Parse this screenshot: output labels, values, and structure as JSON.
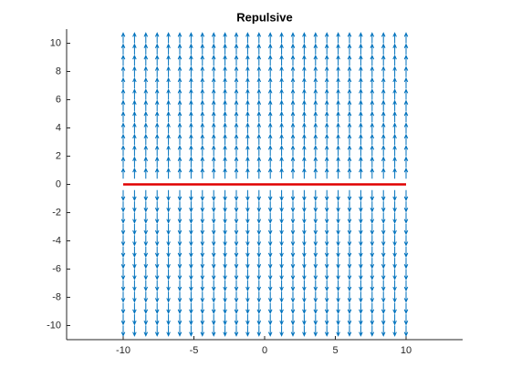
{
  "chart_data": {
    "type": "quiver",
    "title": "Repulsive",
    "x": [
      -10,
      -9.2,
      -8.4,
      -7.6,
      -6.8,
      -6,
      -5.2,
      -4.4,
      -3.6,
      -2.8,
      -2,
      -1.2,
      -0.4,
      0.4,
      1.2,
      2,
      2.8,
      3.6,
      4.4,
      5.2,
      6,
      6.8,
      7.6,
      8.4,
      9.2,
      10
    ],
    "y": [
      -10,
      -9.2,
      -8.4,
      -7.6,
      -6.8,
      -6,
      -5.2,
      -4.4,
      -3.6,
      -2.8,
      -2,
      -1.2,
      -0.4,
      0.4,
      1.2,
      2,
      2.8,
      3.6,
      4.4,
      5.2,
      6,
      6.8,
      7.6,
      8.4,
      9.2,
      10
    ],
    "v": [
      -1,
      -1,
      -1,
      -1,
      -1,
      -1,
      -1,
      -1,
      -1,
      -1,
      -1,
      -1,
      -1,
      1,
      1,
      1,
      1,
      1,
      1,
      1,
      1,
      1,
      1,
      1,
      1,
      1
    ],
    "color": "#0072bd",
    "line": {
      "x": [
        -10,
        10
      ],
      "y": [
        0,
        0
      ],
      "color": "#e00000"
    },
    "xlim": [
      -14,
      14
    ],
    "xticks": [
      -10,
      -5,
      0,
      5,
      10
    ],
    "ylim": [
      -11,
      11
    ],
    "yticks": [
      -10,
      -8,
      -6,
      -4,
      -2,
      0,
      2,
      4,
      6,
      8,
      10
    ]
  }
}
